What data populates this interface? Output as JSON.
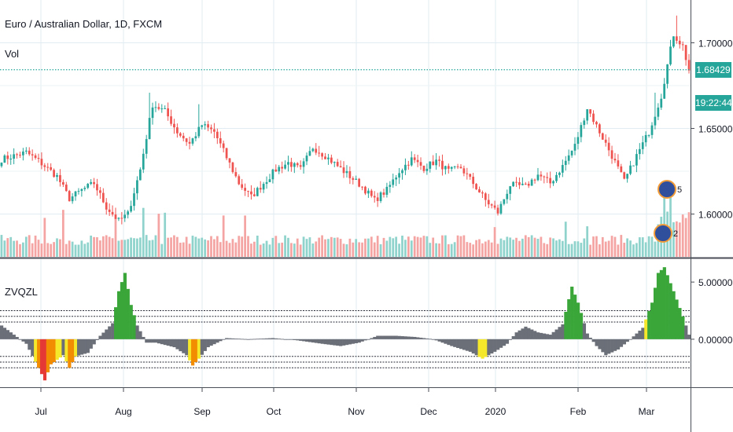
{
  "header": {
    "title": "Euro / Australian Dollar, 1D, FXCM",
    "volume_label": "Vol",
    "last_price": "1.68429",
    "countdown": "19:22:44",
    "indicator_label": "ZVQZL"
  },
  "colors": {
    "up": "#26a69a",
    "down": "#ef5350",
    "volume_up": "#8fd3cc",
    "volume_down": "#f4a5a3",
    "price_line": "#26a69a",
    "hist_grey": "#6b6f78",
    "hist_yellow": "#f5e72a",
    "hist_orange": "#f28c00",
    "hist_red": "#e53935",
    "hist_green": "#3aa63a"
  },
  "chart_data": [
    {
      "type": "candlestick",
      "title": "Euro / Australian Dollar, 1D, FXCM",
      "y_ticks": [
        "1.70000",
        "1.65000",
        "1.60000"
      ],
      "x_ticks": [
        "Jul",
        "Aug",
        "Sep",
        "Oct",
        "Nov",
        "Dec",
        "2020",
        "Feb",
        "Mar"
      ],
      "ylim": [
        1.575,
        1.725
      ],
      "last_price": 1.68429,
      "close_path": [
        [
          0,
          1.632
        ],
        [
          8,
          1.636
        ],
        [
          12,
          1.631
        ],
        [
          18,
          1.622
        ],
        [
          22,
          1.609
        ],
        [
          26,
          1.614
        ],
        [
          30,
          1.618
        ],
        [
          34,
          1.604
        ],
        [
          38,
          1.596
        ],
        [
          41,
          1.6
        ],
        [
          45,
          1.626
        ],
        [
          49,
          1.664
        ],
        [
          53,
          1.66
        ],
        [
          57,
          1.648
        ],
        [
          61,
          1.641
        ],
        [
          65,
          1.652
        ],
        [
          69,
          1.648
        ],
        [
          73,
          1.633
        ],
        [
          77,
          1.618
        ],
        [
          81,
          1.61
        ],
        [
          85,
          1.618
        ],
        [
          89,
          1.626
        ],
        [
          93,
          1.63
        ],
        [
          97,
          1.626
        ],
        [
          101,
          1.639
        ],
        [
          105,
          1.634
        ],
        [
          109,
          1.628
        ],
        [
          113,
          1.622
        ],
        [
          117,
          1.616
        ],
        [
          121,
          1.608
        ],
        [
          125,
          1.614
        ],
        [
          129,
          1.625
        ],
        [
          133,
          1.632
        ],
        [
          137,
          1.627
        ],
        [
          141,
          1.631
        ],
        [
          145,
          1.625
        ],
        [
          149,
          1.627
        ],
        [
          153,
          1.618
        ],
        [
          157,
          1.608
        ],
        [
          161,
          1.601
        ],
        [
          165,
          1.617
        ],
        [
          170,
          1.616
        ],
        [
          174,
          1.623
        ],
        [
          178,
          1.618
        ],
        [
          182,
          1.628
        ],
        [
          186,
          1.64
        ],
        [
          190,
          1.662
        ],
        [
          194,
          1.648
        ],
        [
          198,
          1.634
        ],
        [
          202,
          1.619
        ],
        [
          206,
          1.634
        ],
        [
          210,
          1.648
        ],
        [
          214,
          1.669
        ],
        [
          218,
          1.705
        ],
        [
          221,
          1.698
        ],
        [
          223,
          1.684
        ]
      ],
      "volume_range": [
        0,
        100
      ]
    },
    {
      "type": "histogram",
      "title": "ZVQZL",
      "y_ticks": [
        "5.00000",
        "0.00000"
      ],
      "ylim": [
        -4.2,
        7.0
      ],
      "reference_levels": [
        2.5,
        2.0,
        1.5,
        -1.5,
        -2.0,
        -2.5
      ],
      "series": [
        {
          "x": 0,
          "v": 1.2
        },
        {
          "x": 4,
          "v": 0.4
        },
        {
          "x": 8,
          "v": -0.4
        },
        {
          "x": 12,
          "v": -2.5
        },
        {
          "x": 14,
          "v": -3.6
        },
        {
          "x": 16,
          "v": -2.2
        },
        {
          "x": 20,
          "v": -1.4
        },
        {
          "x": 22,
          "v": -2.5
        },
        {
          "x": 24,
          "v": -1.5
        },
        {
          "x": 28,
          "v": -1.2
        },
        {
          "x": 32,
          "v": 0.3
        },
        {
          "x": 36,
          "v": 1.4
        },
        {
          "x": 38,
          "v": 4.2
        },
        {
          "x": 40,
          "v": 5.8
        },
        {
          "x": 42,
          "v": 3.0
        },
        {
          "x": 44,
          "v": 1.2
        },
        {
          "x": 47,
          "v": -0.3
        },
        {
          "x": 50,
          "v": -0.3
        },
        {
          "x": 56,
          "v": -0.7
        },
        {
          "x": 60,
          "v": -1.4
        },
        {
          "x": 62,
          "v": -2.3
        },
        {
          "x": 64,
          "v": -1.7
        },
        {
          "x": 67,
          "v": -0.7
        },
        {
          "x": 73,
          "v": 0.1
        },
        {
          "x": 80,
          "v": 0.0
        },
        {
          "x": 88,
          "v": 0.1
        },
        {
          "x": 96,
          "v": -0.1
        },
        {
          "x": 104,
          "v": -0.4
        },
        {
          "x": 110,
          "v": -0.6
        },
        {
          "x": 116,
          "v": -0.3
        },
        {
          "x": 122,
          "v": 0.3
        },
        {
          "x": 128,
          "v": 0.3
        },
        {
          "x": 134,
          "v": 0.2
        },
        {
          "x": 140,
          "v": 0.0
        },
        {
          "x": 146,
          "v": -0.6
        },
        {
          "x": 152,
          "v": -1.1
        },
        {
          "x": 156,
          "v": -1.7
        },
        {
          "x": 160,
          "v": -1.1
        },
        {
          "x": 164,
          "v": -0.4
        },
        {
          "x": 167,
          "v": 0.6
        },
        {
          "x": 170,
          "v": 1.1
        },
        {
          "x": 174,
          "v": 0.6
        },
        {
          "x": 178,
          "v": 0.4
        },
        {
          "x": 182,
          "v": 1.3
        },
        {
          "x": 185,
          "v": 4.6
        },
        {
          "x": 187,
          "v": 3.2
        },
        {
          "x": 190,
          "v": 0.5
        },
        {
          "x": 193,
          "v": -0.6
        },
        {
          "x": 196,
          "v": -1.4
        },
        {
          "x": 200,
          "v": -0.9
        },
        {
          "x": 204,
          "v": 0.0
        },
        {
          "x": 208,
          "v": 1.0
        },
        {
          "x": 211,
          "v": 3.2
        },
        {
          "x": 213,
          "v": 5.8
        },
        {
          "x": 215,
          "v": 6.3
        },
        {
          "x": 218,
          "v": 4.2
        },
        {
          "x": 221,
          "v": 2.0
        },
        {
          "x": 223,
          "v": 0.4
        }
      ]
    }
  ],
  "event_badges": [
    {
      "name": "dividend-badge",
      "text": "5"
    },
    {
      "name": "earnings-badge",
      "text": "2"
    }
  ]
}
